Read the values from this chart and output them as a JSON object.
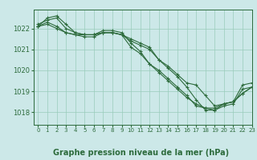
{
  "title": "Graphe pression niveau de la mer (hPa)",
  "background_color": "#cce8e8",
  "grid_color": "#99ccbb",
  "line_color": "#2d6b3c",
  "xlim": [
    -0.5,
    23
  ],
  "ylim": [
    1017.4,
    1022.9
  ],
  "yticks": [
    1018,
    1019,
    1020,
    1021,
    1022
  ],
  "xticks": [
    0,
    1,
    2,
    3,
    4,
    5,
    6,
    7,
    8,
    9,
    10,
    11,
    12,
    13,
    14,
    15,
    16,
    17,
    18,
    19,
    20,
    21,
    22,
    23
  ],
  "series": [
    [
      1022.1,
      1022.5,
      1022.6,
      1022.2,
      1021.8,
      1021.7,
      1021.7,
      1021.8,
      1021.8,
      1021.7,
      1021.4,
      1021.2,
      1021.0,
      1020.5,
      1020.1,
      1019.7,
      1019.2,
      1018.6,
      1018.1,
      1018.1,
      1018.3,
      1018.4,
      1019.1,
      1019.2
    ],
    [
      1022.2,
      1022.4,
      1022.5,
      1022.0,
      1021.8,
      1021.7,
      1021.7,
      1021.9,
      1021.9,
      1021.8,
      1021.3,
      1020.9,
      1020.3,
      1020.0,
      1019.6,
      1019.2,
      1018.8,
      1018.3,
      1018.2,
      1018.2,
      1018.4,
      1018.5,
      1018.9,
      1019.2
    ],
    [
      1022.1,
      1022.3,
      1022.1,
      1021.8,
      1021.7,
      1021.6,
      1021.6,
      1021.8,
      1021.8,
      1021.7,
      1021.5,
      1021.3,
      1021.1,
      1020.5,
      1020.2,
      1019.8,
      1019.4,
      1019.3,
      1018.8,
      1018.3,
      1018.4,
      1018.5,
      1019.3,
      1019.4
    ],
    [
      1022.1,
      1022.2,
      1022.0,
      1021.8,
      1021.7,
      1021.7,
      1021.7,
      1021.8,
      1021.8,
      1021.7,
      1021.1,
      1020.8,
      1020.3,
      1019.9,
      1019.5,
      1019.1,
      1018.7,
      1018.4,
      1018.2,
      1018.1,
      1018.4,
      1018.5,
      1018.9,
      1019.2
    ]
  ],
  "xlabel_fontsize": 7,
  "ytick_fontsize": 6,
  "xtick_fontsize": 5
}
